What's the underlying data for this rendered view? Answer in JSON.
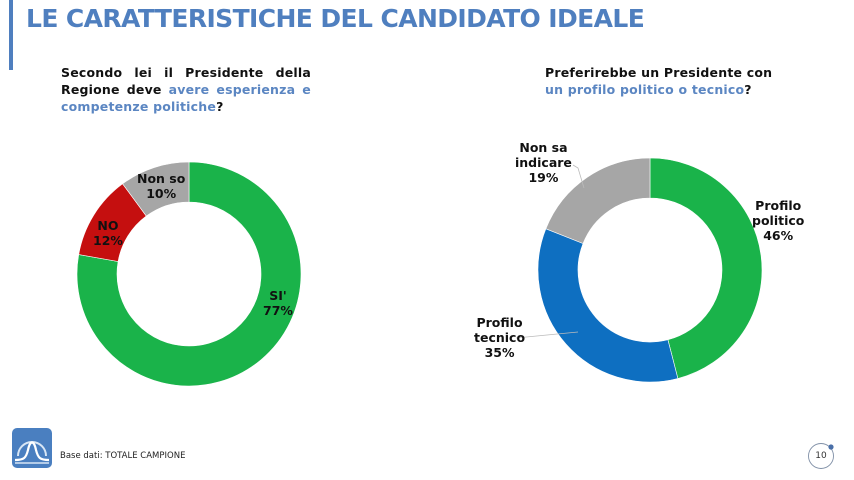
{
  "header": {
    "title": "LE CARATTERISTICHE DEL CANDIDATO IDEALE"
  },
  "colors": {
    "accent": "#4f7fbf",
    "highlight_text": "#5b86c2",
    "green": "#1ab34a",
    "red": "#c50f0f",
    "gray": "#a6a6a6",
    "blue": "#0e6fc1"
  },
  "left_question": {
    "part1": "Secondo lei il Presidente della Regione deve ",
    "highlight": "avere esperienza e competenze politiche",
    "end": "?"
  },
  "right_question": {
    "part1": "Preferirebbe un Presidente con ",
    "highlight": "un profilo politico o tecnico",
    "end": "?"
  },
  "chart_data": [
    {
      "type": "pie",
      "donut": true,
      "title": "Secondo lei il Presidente della Regione deve avere esperienza e competenze politiche?",
      "slices": [
        {
          "label": "SI'",
          "value": 77,
          "value_label": "77%",
          "color": "#1ab34a"
        },
        {
          "label": "NO",
          "value": 12,
          "value_label": "12%",
          "color": "#c50f0f"
        },
        {
          "label": "Non so",
          "value": 10,
          "value_label": "10%",
          "color": "#a6a6a6"
        }
      ],
      "start": "12 o'clock, clockwise"
    },
    {
      "type": "pie",
      "donut": true,
      "title": "Preferirebbe un Presidente con un profilo politico o tecnico?",
      "slices": [
        {
          "label": "Profilo politico",
          "value": 46,
          "value_label": "46%",
          "color": "#1ab34a"
        },
        {
          "label": "Profilo tecnico",
          "value": 35,
          "value_label": "35%",
          "color": "#0e6fc1"
        },
        {
          "label": "Non sa indicare",
          "value": 19,
          "value_label": "19%",
          "color": "#a6a6a6"
        }
      ],
      "start": "12 o'clock, clockwise"
    }
  ],
  "labels": {
    "si_line1": "SI'",
    "no_line1": "NO",
    "nonso_line1": "Non so",
    "pol_line1": "Profilo",
    "pol_line2": "politico",
    "tec_line1": "Profilo",
    "tec_line2": "tecnico",
    "nsi_line1": "Non sa",
    "nsi_line2": "indicare"
  },
  "footer": {
    "base_text": "Base dati: TOTALE CAMPIONE",
    "page_number": "10",
    "logo_icon": "bell-curve-logo-icon"
  }
}
